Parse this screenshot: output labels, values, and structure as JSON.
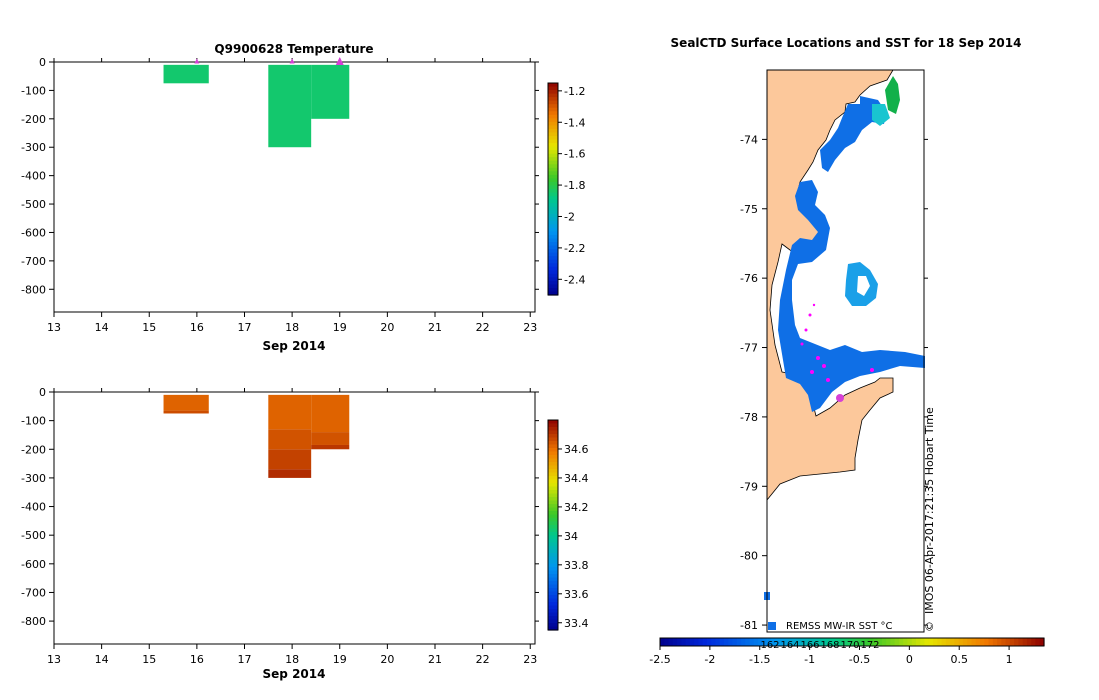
{
  "chart_data": [
    {
      "type": "heatmap",
      "title": "Q9900628  Temperature",
      "xlabel": "Sep 2014",
      "ylabel": "",
      "x_ticks": [
        13,
        14,
        15,
        16,
        17,
        18,
        19,
        20,
        21,
        22,
        23
      ],
      "y_ticks": [
        0,
        -100,
        -200,
        -300,
        -400,
        -500,
        -600,
        -700,
        -800
      ],
      "xlim": [
        13,
        23.1
      ],
      "ylim": [
        -880,
        0
      ],
      "colorbar": {
        "ticks": [
          -1.2,
          -1.4,
          -1.6,
          -1.8,
          -2,
          -2.2,
          -2.4
        ],
        "labels": [
          "-1.2",
          "-1.4",
          "-1.6",
          "-1.8",
          "-2",
          "-2.2",
          "-2.4"
        ],
        "min": -2.5,
        "max": -1.15
      },
      "cells": [
        {
          "x0": 15.3,
          "x1": 16.25,
          "top": -10,
          "bottom": -75,
          "value": -1.85
        },
        {
          "x0": 17.5,
          "x1": 18.4,
          "top": -10,
          "bottom": -300,
          "value": -1.85
        },
        {
          "x0": 18.4,
          "x1": 19.2,
          "top": -10,
          "bottom": -200,
          "value": -1.85
        }
      ],
      "markers": [
        {
          "x": 16.0,
          "y": 0,
          "size": "small"
        },
        {
          "x": 18.0,
          "y": 0,
          "size": "small"
        },
        {
          "x": 19.0,
          "y": 0,
          "size": "large"
        }
      ]
    },
    {
      "type": "heatmap",
      "title": "",
      "xlabel": "Sep 2014",
      "ylabel": "",
      "x_ticks": [
        13,
        14,
        15,
        16,
        17,
        18,
        19,
        20,
        21,
        22,
        23
      ],
      "y_ticks": [
        0,
        -100,
        -200,
        -300,
        -400,
        -500,
        -600,
        -700,
        -800
      ],
      "xlim": [
        13,
        23.1
      ],
      "ylim": [
        -880,
        0
      ],
      "colorbar": {
        "ticks": [
          34.6,
          34.4,
          34.2,
          34,
          33.8,
          33.6,
          33.4
        ],
        "labels": [
          "34.6",
          "34.4",
          "34.2",
          "34",
          "33.8",
          "33.6",
          "33.4"
        ],
        "min": 33.35,
        "max": 34.8
      },
      "cells": [
        {
          "x0": 15.3,
          "x1": 16.25,
          "top": -10,
          "bottom": -65,
          "value": 34.62
        },
        {
          "x0": 15.3,
          "x1": 16.25,
          "top": -65,
          "bottom": -75,
          "value": 34.66
        },
        {
          "x0": 17.5,
          "x1": 18.4,
          "top": -10,
          "bottom": -130,
          "value": 34.62
        },
        {
          "x0": 17.5,
          "x1": 18.4,
          "top": -130,
          "bottom": -200,
          "value": 34.65
        },
        {
          "x0": 17.5,
          "x1": 18.4,
          "top": -200,
          "bottom": -270,
          "value": 34.68
        },
        {
          "x0": 17.5,
          "x1": 18.4,
          "top": -270,
          "bottom": -300,
          "value": 34.72
        },
        {
          "x0": 18.4,
          "x1": 19.2,
          "top": -10,
          "bottom": -140,
          "value": 34.62
        },
        {
          "x0": 18.4,
          "x1": 19.2,
          "top": -140,
          "bottom": -185,
          "value": 34.65
        },
        {
          "x0": 18.4,
          "x1": 19.2,
          "top": -185,
          "bottom": -200,
          "value": 34.7
        }
      ],
      "markers": []
    },
    {
      "type": "map",
      "title": "SealCTD Surface Locations and SST for 18 Sep 2014",
      "y_ticks": [
        -74,
        -75,
        -76,
        -77,
        -78,
        -79,
        -80,
        -81
      ],
      "ylim": [
        -81.1,
        -73.0
      ],
      "colorbar": {
        "ticks": [
          -2.5,
          -2,
          -1.5,
          -1,
          -0.5,
          0,
          0.5,
          1
        ],
        "labels": [
          "-2.5",
          "-2",
          "-1.5",
          "-1",
          "-0.5",
          "0",
          "0.5",
          "1"
        ],
        "min": -2.5,
        "max": 1.35,
        "overprint_labels": [
          "162",
          "164",
          "166",
          "168",
          "170",
          "172"
        ]
      },
      "source_label": "REMSS MW-IR SST °C",
      "credit_text": "IMOS 06-Apr-2017:21:35 Hobart Time",
      "copyright_symbol": "©",
      "land_color": "#fcc89b"
    }
  ]
}
